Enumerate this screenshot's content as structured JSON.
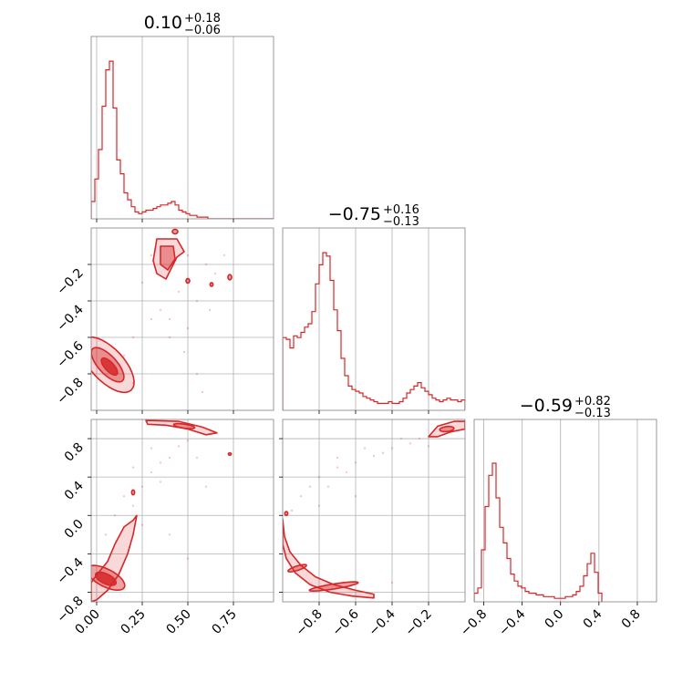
{
  "chart_data": {
    "type": "corner",
    "color": "#d62728",
    "grid": true,
    "parameters": [
      {
        "title_value": "0.10",
        "title_plus": "+0.18",
        "title_minus": "−0.06",
        "range": [
          -0.03,
          0.97
        ]
      },
      {
        "title_value": "−0.75",
        "title_plus": "+0.16",
        "title_minus": "−0.13",
        "range": [
          -1.0,
          0.0
        ]
      },
      {
        "title_value": "−0.59",
        "title_plus": "+0.82",
        "title_minus": "−0.13",
        "range": [
          -0.9,
          1.0
        ]
      }
    ],
    "axis_ticks": {
      "x0": [
        {
          "v": 0.0,
          "label": "0.00"
        },
        {
          "v": 0.25,
          "label": "0.25"
        },
        {
          "v": 0.5,
          "label": "0.50"
        },
        {
          "v": 0.75,
          "label": "0.75"
        }
      ],
      "x1": [
        {
          "v": -0.8,
          "label": "−0.8"
        },
        {
          "v": -0.6,
          "label": "−0.6"
        },
        {
          "v": -0.4,
          "label": "−0.4"
        },
        {
          "v": -0.2,
          "label": "−0.2"
        }
      ],
      "x2": [
        {
          "v": -0.8,
          "label": "−0.8"
        },
        {
          "v": -0.4,
          "label": "−0.4"
        },
        {
          "v": 0.0,
          "label": "0.0"
        },
        {
          "v": 0.4,
          "label": "0.4"
        },
        {
          "v": 0.8,
          "label": "0.8"
        }
      ],
      "y1": [
        {
          "v": -0.2,
          "label": "−0.2"
        },
        {
          "v": -0.4,
          "label": "−0.4"
        },
        {
          "v": -0.6,
          "label": "−0.6"
        },
        {
          "v": -0.8,
          "label": "−0.8"
        }
      ],
      "y2": [
        {
          "v": 0.8,
          "label": "0.8"
        },
        {
          "v": 0.4,
          "label": "0.4"
        },
        {
          "v": 0.0,
          "label": "0.0"
        },
        {
          "v": -0.4,
          "label": "−0.4"
        },
        {
          "v": -0.8,
          "label": "−0.8"
        }
      ]
    },
    "histograms": [
      {
        "param": 0,
        "x_start": -0.03,
        "bin_width": 0.02,
        "max": 1.0,
        "values": [
          0.1,
          0.23,
          0.4,
          0.65,
          0.86,
          0.91,
          0.64,
          0.34,
          0.26,
          0.15,
          0.11,
          0.07,
          0.04,
          0.03,
          0.04,
          0.05,
          0.05,
          0.06,
          0.07,
          0.08,
          0.08,
          0.09,
          0.1,
          0.08,
          0.05,
          0.04,
          0.03,
          0.02,
          0.02,
          0.01,
          0.01,
          0.01,
          0.0,
          0.0,
          0.0,
          0.0,
          0.0,
          0.0,
          0.0,
          0.0,
          0.0,
          0.0,
          0.0,
          0.0,
          0.0,
          0.0,
          0.0,
          0.0,
          0.0,
          0.0
        ]
      },
      {
        "param": 1,
        "x_start": -1.0,
        "bin_width": 0.02,
        "max": 1.0,
        "values": [
          0.42,
          0.41,
          0.36,
          0.43,
          0.42,
          0.45,
          0.48,
          0.5,
          0.57,
          0.73,
          0.84,
          0.91,
          0.89,
          0.75,
          0.58,
          0.46,
          0.3,
          0.2,
          0.14,
          0.12,
          0.11,
          0.1,
          0.08,
          0.07,
          0.06,
          0.05,
          0.04,
          0.04,
          0.04,
          0.05,
          0.04,
          0.04,
          0.05,
          0.07,
          0.1,
          0.12,
          0.14,
          0.16,
          0.13,
          0.11,
          0.09,
          0.07,
          0.06,
          0.05,
          0.06,
          0.07,
          0.06,
          0.06,
          0.05,
          0.06
        ]
      },
      {
        "param": 2,
        "x_start": -0.9,
        "bin_width": 0.038,
        "max": 1.0,
        "values": [
          0.05,
          0.08,
          0.3,
          0.55,
          0.73,
          0.8,
          0.6,
          0.43,
          0.34,
          0.25,
          0.16,
          0.12,
          0.09,
          0.08,
          0.06,
          0.05,
          0.05,
          0.04,
          0.04,
          0.03,
          0.03,
          0.03,
          0.02,
          0.02,
          0.02,
          0.03,
          0.03,
          0.04,
          0.06,
          0.09,
          0.15,
          0.22,
          0.28,
          0.17,
          0.05
        ]
      }
    ],
    "contours": [
      {
        "x_param": 0,
        "y_param": 1,
        "blobs": [
          {
            "type": "ellipse",
            "cx": 0.06,
            "cy": -0.75,
            "rx": 0.19,
            "ry": 0.09,
            "angle": -0.82,
            "level": 3
          },
          {
            "type": "ellipse",
            "cx": 0.06,
            "cy": -0.75,
            "rx": 0.12,
            "ry": 0.05,
            "angle": -0.82,
            "level": 2
          },
          {
            "type": "ellipse",
            "cx": 0.07,
            "cy": -0.76,
            "rx": 0.06,
            "ry": 0.025,
            "angle": -0.82,
            "level": 1
          },
          {
            "type": "polygon",
            "level": 3,
            "pts": [
              [
                0.33,
                -0.06
              ],
              [
                0.44,
                -0.06
              ],
              [
                0.48,
                -0.13
              ],
              [
                0.44,
                -0.16
              ],
              [
                0.41,
                -0.22
              ],
              [
                0.38,
                -0.28
              ],
              [
                0.33,
                -0.25
              ],
              [
                0.31,
                -0.18
              ]
            ]
          },
          {
            "type": "polygon",
            "level": 2,
            "pts": [
              [
                0.35,
                -0.1
              ],
              [
                0.42,
                -0.1
              ],
              [
                0.43,
                -0.17
              ],
              [
                0.39,
                -0.23
              ],
              [
                0.35,
                -0.2
              ]
            ]
          },
          {
            "type": "ellipse",
            "cx": 0.73,
            "cy": -0.27,
            "rx": 0.01,
            "ry": 0.014,
            "angle": 0,
            "level": 2
          },
          {
            "type": "ellipse",
            "cx": 0.63,
            "cy": -0.31,
            "rx": 0.008,
            "ry": 0.01,
            "angle": 0,
            "level": 2
          },
          {
            "type": "ellipse",
            "cx": 0.5,
            "cy": -0.29,
            "rx": 0.01,
            "ry": 0.012,
            "angle": 0,
            "level": 2
          },
          {
            "type": "ellipse",
            "cx": 0.43,
            "cy": -0.02,
            "rx": 0.015,
            "ry": 0.012,
            "angle": 0,
            "level": 2
          }
        ],
        "scatter": [
          [
            0.15,
            -0.7
          ],
          [
            0.2,
            -0.6
          ],
          [
            0.3,
            -0.5
          ],
          [
            0.35,
            -0.45
          ],
          [
            0.4,
            -0.5
          ],
          [
            0.45,
            -0.35
          ],
          [
            0.5,
            -0.55
          ],
          [
            0.55,
            -0.4
          ],
          [
            0.6,
            -0.2
          ],
          [
            0.62,
            -0.45
          ],
          [
            0.25,
            -0.3
          ],
          [
            0.3,
            -0.15
          ],
          [
            0.48,
            -0.68
          ],
          [
            0.55,
            -0.8
          ],
          [
            0.58,
            -0.9
          ],
          [
            0.2,
            -0.85
          ],
          [
            0.65,
            -0.25
          ],
          [
            0.7,
            -0.15
          ],
          [
            0.5,
            -0.15
          ],
          [
            0.4,
            -0.6
          ]
        ]
      },
      {
        "x_param": 0,
        "y_param": 2,
        "blobs": [
          {
            "type": "polygon",
            "level": 3,
            "pts": [
              [
                -0.03,
                -0.9
              ],
              [
                -0.03,
                -0.7
              ],
              [
                0.0,
                -0.62
              ],
              [
                0.06,
                -0.48
              ],
              [
                0.1,
                -0.3
              ],
              [
                0.15,
                -0.12
              ],
              [
                0.2,
                -0.05
              ],
              [
                0.22,
                0.0
              ],
              [
                0.2,
                -0.2
              ],
              [
                0.17,
                -0.4
              ],
              [
                0.12,
                -0.62
              ],
              [
                0.06,
                -0.78
              ],
              [
                0.0,
                -0.88
              ]
            ]
          },
          {
            "type": "ellipse",
            "cx": 0.05,
            "cy": -0.65,
            "rx": 0.15,
            "ry": 0.07,
            "angle": -0.95,
            "level": 2
          },
          {
            "type": "ellipse",
            "cx": 0.05,
            "cy": -0.66,
            "rx": 0.08,
            "ry": 0.04,
            "angle": -0.95,
            "level": 1
          },
          {
            "type": "polygon",
            "level": 3,
            "pts": [
              [
                0.27,
                0.99
              ],
              [
                0.45,
                0.98
              ],
              [
                0.58,
                0.92
              ],
              [
                0.66,
                0.86
              ],
              [
                0.6,
                0.84
              ],
              [
                0.5,
                0.9
              ],
              [
                0.38,
                0.94
              ],
              [
                0.28,
                0.95
              ]
            ]
          },
          {
            "type": "ellipse",
            "cx": 0.48,
            "cy": 0.93,
            "rx": 0.06,
            "ry": 0.02,
            "angle": -0.3,
            "level": 2
          },
          {
            "type": "ellipse",
            "cx": 0.2,
            "cy": 0.24,
            "rx": 0.008,
            "ry": 0.025,
            "angle": 0,
            "level": 2
          },
          {
            "type": "ellipse",
            "cx": 0.73,
            "cy": 0.64,
            "rx": 0.008,
            "ry": 0.012,
            "angle": 0,
            "level": 2
          }
        ],
        "scatter": [
          [
            0.25,
            0.3
          ],
          [
            0.3,
            0.45
          ],
          [
            0.35,
            0.55
          ],
          [
            0.4,
            0.6
          ],
          [
            0.45,
            0.72
          ],
          [
            0.5,
            0.78
          ],
          [
            0.2,
            0.5
          ],
          [
            0.15,
            0.2
          ],
          [
            0.3,
            0.7
          ],
          [
            0.1,
            0.0
          ],
          [
            0.35,
            0.35
          ],
          [
            0.55,
            0.6
          ],
          [
            0.05,
            -0.2
          ],
          [
            0.4,
            -0.2
          ],
          [
            0.5,
            -0.45
          ],
          [
            0.6,
            0.3
          ],
          [
            0.25,
            -0.1
          ],
          [
            0.2,
            0.1
          ]
        ]
      },
      {
        "x_param": 1,
        "y_param": 2,
        "blobs": [
          {
            "type": "polygon",
            "level": 3,
            "pts": [
              [
                -1.0,
                -0.04
              ],
              [
                -0.99,
                -0.22
              ],
              [
                -0.96,
                -0.38
              ],
              [
                -0.9,
                -0.52
              ],
              [
                -0.82,
                -0.64
              ],
              [
                -0.72,
                -0.72
              ],
              [
                -0.6,
                -0.78
              ],
              [
                -0.5,
                -0.82
              ],
              [
                -0.5,
                -0.86
              ],
              [
                -0.62,
                -0.84
              ],
              [
                -0.74,
                -0.8
              ],
              [
                -0.85,
                -0.72
              ],
              [
                -0.93,
                -0.6
              ],
              [
                -0.98,
                -0.45
              ],
              [
                -1.0,
                -0.3
              ]
            ]
          },
          {
            "type": "ellipse",
            "cx": -0.72,
            "cy": -0.74,
            "rx": 0.14,
            "ry": 0.025,
            "angle": 0.3,
            "level": 2
          },
          {
            "type": "ellipse",
            "cx": -0.92,
            "cy": -0.55,
            "rx": 0.06,
            "ry": 0.02,
            "angle": 0.6,
            "level": 2
          },
          {
            "type": "polygon",
            "level": 3,
            "pts": [
              [
                -0.2,
                0.82
              ],
              [
                -0.15,
                0.93
              ],
              [
                -0.06,
                0.98
              ],
              [
                0.0,
                0.98
              ],
              [
                0.0,
                0.9
              ],
              [
                -0.08,
                0.87
              ],
              [
                -0.15,
                0.82
              ]
            ]
          },
          {
            "type": "ellipse",
            "cx": -0.1,
            "cy": 0.9,
            "rx": 0.04,
            "ry": 0.025,
            "angle": 0.3,
            "level": 2
          },
          {
            "type": "ellipse",
            "cx": -0.98,
            "cy": 0.02,
            "rx": 0.008,
            "ry": 0.02,
            "angle": 0,
            "level": 2
          }
        ],
        "scatter": [
          [
            -0.9,
            0.2
          ],
          [
            -0.85,
            0.3
          ],
          [
            -0.8,
            0.4
          ],
          [
            -0.7,
            0.5
          ],
          [
            -0.6,
            0.55
          ],
          [
            -0.5,
            0.62
          ],
          [
            -0.4,
            0.7
          ],
          [
            -0.3,
            0.75
          ],
          [
            -0.35,
            0.8
          ],
          [
            -0.55,
            0.7
          ],
          [
            -0.75,
            0.3
          ],
          [
            -0.95,
            0.05
          ],
          [
            -0.65,
            0.45
          ],
          [
            -0.45,
            0.65
          ],
          [
            -0.25,
            0.8
          ],
          [
            -0.2,
            0.72
          ],
          [
            -0.4,
            -0.7
          ],
          [
            -0.6,
            0.2
          ],
          [
            -0.8,
            0.1
          ],
          [
            -0.7,
            0.6
          ]
        ]
      }
    ]
  }
}
